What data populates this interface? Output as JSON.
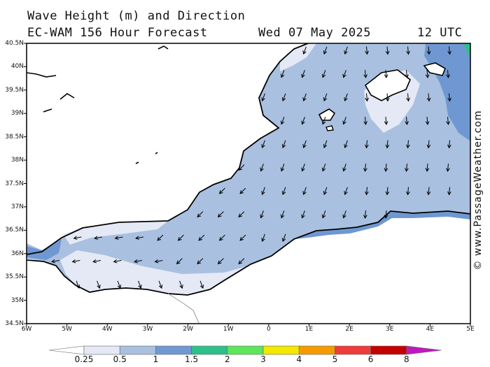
{
  "header": {
    "title_line1": "Wave Height (m) and Direction",
    "title_line2": "EC-WAM 156 Hour Forecast",
    "date": "Wed 07 May 2025",
    "time": "12 UTC"
  },
  "credit": "© www.PassageWeather.com",
  "axes": {
    "lat_labels": [
      "40.5N",
      "40N",
      "39.5N",
      "39N",
      "38.5N",
      "38N",
      "37.5N",
      "37N",
      "36.5N",
      "36N",
      "35.5N",
      "35N",
      "34.5N"
    ],
    "lon_labels": [
      "6W",
      "5W",
      "4W",
      "3W",
      "2W",
      "1W",
      "0",
      "1E",
      "2E",
      "3E",
      "4E",
      "5E"
    ]
  },
  "legend": {
    "labels": [
      "0.25",
      "0.5",
      "1",
      "1.5",
      "2",
      "3",
      "4",
      "5",
      "6",
      "8"
    ],
    "colors": [
      "#e4e9f5",
      "#a9c0e0",
      "#6f98d2",
      "#2cc08a",
      "#5de65a",
      "#f2e800",
      "#f69a00",
      "#ef3b3b",
      "#c40000",
      "#c018c0"
    ]
  },
  "colors": {
    "land": "#ffffff",
    "sea_light": "#e4e9f5",
    "sea_mid": "#a9c0e0",
    "sea_dark": "#6f98d2",
    "coast": "#000000"
  }
}
